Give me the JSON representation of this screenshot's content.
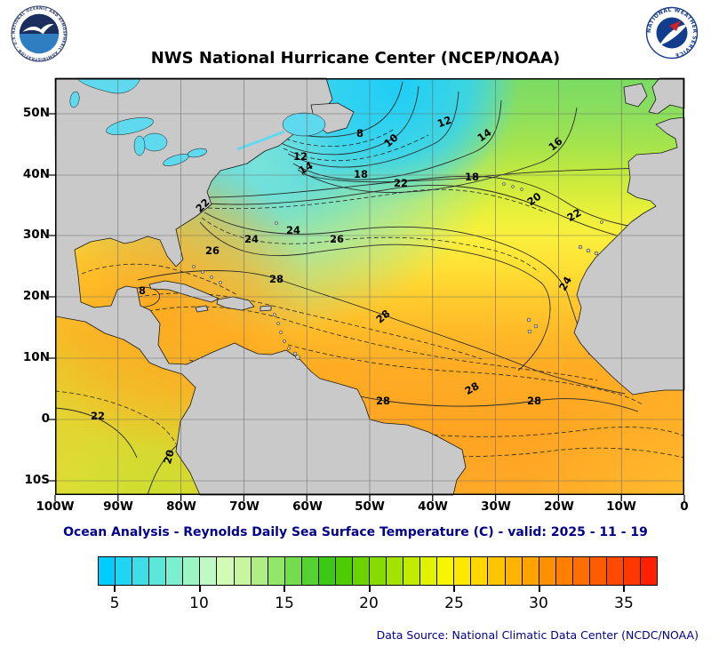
{
  "header": {
    "title": "NWS National Hurricane Center (NCEP/NOAA)",
    "noaa_ring_text": "NATIONAL OCEANIC AND ATMOSPHERIC ADMINISTRATION - U.S. DEPARTMENT OF COMMERCE",
    "nws_ring_text": "NATIONAL WEATHER SERVICE"
  },
  "map": {
    "y_ticks": [
      "50N",
      "40N",
      "30N",
      "20N",
      "10N",
      "0",
      "10S"
    ],
    "x_ticks": [
      "100W",
      "90W",
      "80W",
      "70W",
      "60W",
      "50W",
      "40W",
      "30W",
      "20W",
      "10W",
      "0"
    ],
    "contour_labels": [
      "8",
      "10",
      "12",
      "14",
      "16",
      "12",
      "14",
      "18",
      "22",
      "18",
      "20",
      "22",
      "22",
      "24",
      "24",
      "26",
      "26",
      "28",
      "28",
      "28",
      "28",
      "28",
      "24",
      "22",
      "20",
      "8"
    ],
    "units": "C"
  },
  "caption": "Ocean Analysis - Reynolds Daily Sea Surface Temperature (C) - valid: 2025 - 11 - 19",
  "colorbar": {
    "tick_labels": [
      "5",
      "10",
      "15",
      "20",
      "25",
      "30",
      "35"
    ],
    "colors": [
      "#00CCFF",
      "#1FD5F2",
      "#3EDEE6",
      "#5DE7DA",
      "#7CEFCE",
      "#9BF5C4",
      "#BDFAC4",
      "#D2FBB6",
      "#C8F5A0",
      "#AFEE85",
      "#92E669",
      "#74DD4D",
      "#55D231",
      "#3CC916",
      "#4ECC00",
      "#6AD300",
      "#86DB00",
      "#A4E300",
      "#C2EB00",
      "#E0F200",
      "#F8F500",
      "#FFE800",
      "#FFD700",
      "#FFC600",
      "#FFB400",
      "#FFA300",
      "#FF9100",
      "#FF8000",
      "#FF6E00",
      "#FF5C00",
      "#FF4A00",
      "#FF3700",
      "#FF2000"
    ]
  },
  "footer": {
    "data_source": "Data Source: National Climatic Data Center (NCDC/NOAA)"
  }
}
